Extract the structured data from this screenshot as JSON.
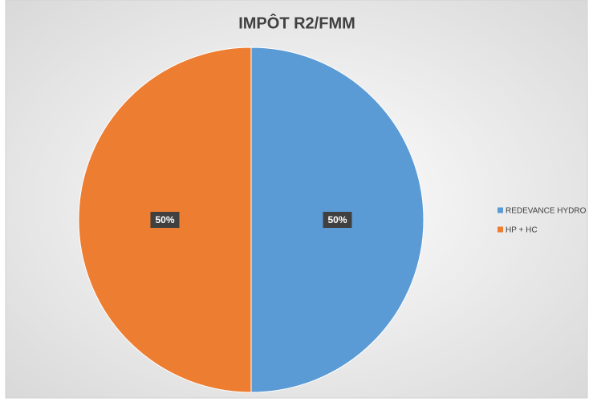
{
  "chart_data": {
    "type": "pie",
    "title": "IMPÔT R2/FMM",
    "categories": [
      "REDEVANCE HYDRO",
      "HP + HC"
    ],
    "values": [
      50,
      50
    ],
    "value_labels": [
      "50%",
      "50%"
    ],
    "colors": [
      "#5b9bd5",
      "#ed7d31"
    ],
    "legend": "right"
  }
}
